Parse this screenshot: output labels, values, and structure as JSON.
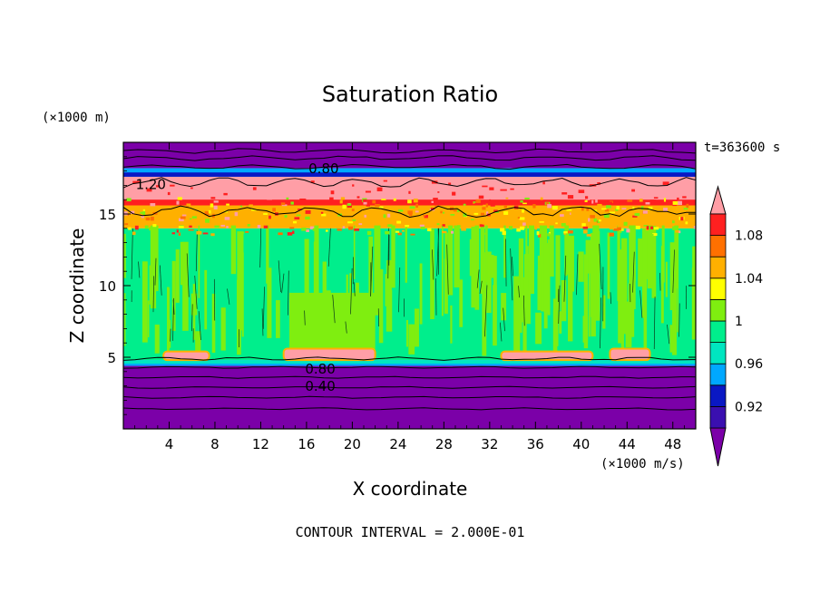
{
  "chart_data": {
    "type": "heatmap",
    "title": "Saturation Ratio",
    "xlabel": "X coordinate",
    "ylabel": "Z coordinate",
    "x_unit_label": "(×1000 m/s)",
    "y_unit_label": "(×1000 m)",
    "time_label": "t=363600 s",
    "contour_interval_label": "CONTOUR INTERVAL = 2.000E-01",
    "xlim": [
      0,
      50
    ],
    "ylim": [
      0,
      20
    ],
    "x_ticks": [
      4,
      8,
      12,
      16,
      20,
      24,
      28,
      32,
      36,
      40,
      44,
      48
    ],
    "y_ticks": [
      5,
      10,
      15
    ],
    "colorbar": {
      "levels": [
        0.92,
        0.94,
        0.96,
        0.98,
        1.0,
        1.02,
        1.04,
        1.06,
        1.08,
        1.1
      ],
      "tick_labels": [
        "0.92",
        "0.96",
        "1",
        "1.04",
        "1.08"
      ],
      "tick_values": [
        0.92,
        0.96,
        1.0,
        1.04,
        1.08
      ],
      "colors": [
        "#7b00a8",
        "#3a0fb0",
        "#0a18c4",
        "#00a8ff",
        "#00e6c0",
        "#00ee8c",
        "#7fee10",
        "#ffff00",
        "#ffb000",
        "#ff7000",
        "#ff2020",
        "#ff9ea6"
      ],
      "extend": "both"
    },
    "bands": [
      {
        "z0": 0,
        "z1": 4.4,
        "value": "below 0.92"
      },
      {
        "z0": 4.4,
        "z1": 4.8,
        "value": "0.96-0.98"
      },
      {
        "z0": 4.8,
        "z1": 14.0,
        "value": "0.98-1.02"
      },
      {
        "z0": 14.0,
        "z1": 15.8,
        "value": "1.02-1.10"
      },
      {
        "z0": 15.8,
        "z1": 17.6,
        "value": "above 1.10"
      },
      {
        "z0": 17.6,
        "z1": 18.2,
        "value": "0.94-0.98"
      },
      {
        "z0": 18.2,
        "z1": 20,
        "value": "below 0.92"
      }
    ],
    "contour_labels": [
      {
        "text": "1.20",
        "x": 2.4,
        "z": 17.0
      },
      {
        "text": "0.80",
        "x": 17.5,
        "z": 18.1
      },
      {
        "text": "0.80",
        "x": 17.2,
        "z": 4.1
      },
      {
        "text": "0.40",
        "x": 17.2,
        "z": 2.9
      }
    ],
    "pink_lenses": [
      {
        "x0": 3.5,
        "x1": 7.5,
        "z0": 4.8,
        "z1": 5.4
      },
      {
        "x0": 14.0,
        "x1": 22.0,
        "z0": 4.8,
        "z1": 5.6
      },
      {
        "x0": 33.0,
        "x1": 41.0,
        "z0": 4.8,
        "z1": 5.4
      },
      {
        "x0": 42.5,
        "x1": 46.0,
        "z0": 4.8,
        "z1": 5.6
      }
    ]
  }
}
